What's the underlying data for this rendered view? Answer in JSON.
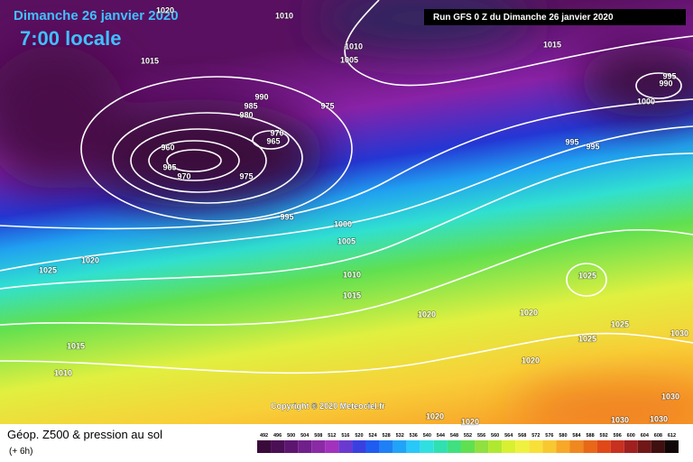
{
  "header": {
    "date": "Dimanche 26 janvier 2020",
    "time": "7:00 locale",
    "run_info": "Run GFS 0 Z du Dimanche 26 janvier 2020"
  },
  "copyright": "Copyright © 2020 Meteociel.fr",
  "footer": {
    "title": "Géop. Z500 & pression au sol",
    "subtitle": "(+ 6h)"
  },
  "isobar_labels": [
    1020,
    1010,
    1010,
    1005,
    1015,
    1015,
    995,
    990,
    1000,
    990,
    985,
    980,
    975,
    970,
    965,
    960,
    965,
    970,
    975,
    995,
    995,
    995,
    1000,
    1005,
    1020,
    1025,
    1010,
    1015,
    1025,
    1020,
    1020,
    1025,
    1025,
    1030,
    1015,
    1010,
    1020,
    1020,
    1020,
    1030,
    1030,
    1030
  ],
  "legend": {
    "values": [
      492,
      496,
      500,
      504,
      508,
      512,
      516,
      520,
      524,
      528,
      532,
      536,
      540,
      544,
      548,
      552,
      556,
      560,
      564,
      568,
      572,
      576,
      580,
      584,
      588,
      592,
      596,
      600,
      604,
      608,
      612
    ],
    "colors": [
      "#3a0a3a",
      "#4b0f55",
      "#5d1670",
      "#70208a",
      "#8a2aa5",
      "#a232be",
      "#6a3ad0",
      "#3a40e0",
      "#1f5cf0",
      "#1e80f5",
      "#20a4f8",
      "#28c8f8",
      "#30e0e0",
      "#30e0b0",
      "#40e080",
      "#60e050",
      "#90e040",
      "#b0e830",
      "#d8f030",
      "#f0f040",
      "#f8e038",
      "#f8c830",
      "#f8a828",
      "#f08820",
      "#e86818",
      "#e04818",
      "#c83020",
      "#a02020",
      "#701818",
      "#401010",
      "#100808"
    ]
  }
}
